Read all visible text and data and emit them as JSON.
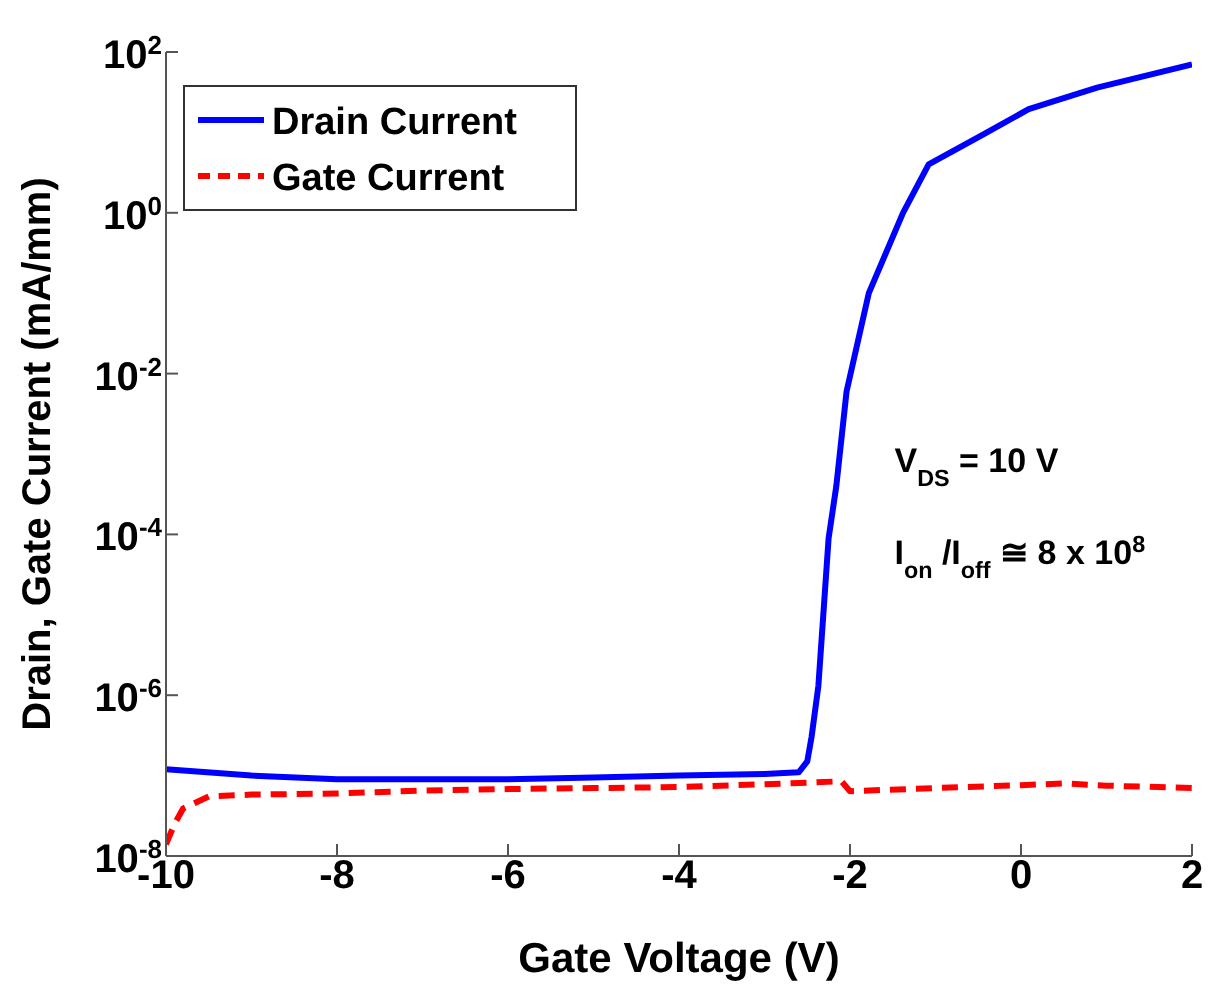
{
  "chart_data": {
    "type": "line",
    "xlabel": "Gate Voltage (V)",
    "ylabel": "Drain, Gate Current (mA/mm)",
    "log": "y",
    "grid": false,
    "legend": "top left",
    "marker": "none",
    "xlim": [
      -10,
      2
    ],
    "xticks": [
      -10,
      -8,
      -6,
      -4,
      -2,
      0,
      2
    ],
    "ylim": [
      1e-08,
      100
    ],
    "yticks": [
      {
        "value": 1e-08,
        "label": "10$^{-8}$"
      },
      {
        "value": 1e-06,
        "label": "10$^{-6}$"
      },
      {
        "value": 0.0001,
        "label": "10$^{-4}$"
      },
      {
        "value": 0.01,
        "label": "10$^{-2}$"
      },
      {
        "value": 1,
        "label": "10$^{0}$"
      },
      {
        "value": 100,
        "label": "10$^{2}$"
      }
    ],
    "annotations": [
      "V$_{DS}$ = 10 V",
      "I$_{on}$ /I$_{off}$ ≅ 8 x 10$^{8}$"
    ],
    "series": [
      {
        "name": "Drain Current",
        "color": "#0000ff",
        "line_style": "solid",
        "x": [
          -10,
          -9,
          -8,
          -7,
          -6,
          -5,
          -4,
          -3,
          -2.6,
          -2.5,
          -2.45,
          -2.37,
          -2.25,
          -2.16,
          -2.04,
          -1.78,
          -1.38,
          -1.08,
          -0.45,
          0.09,
          0.89,
          2
        ],
        "values": [
          1.2e-07,
          1e-07,
          9e-08,
          9e-08,
          9e-08,
          9.5e-08,
          1e-07,
          1.05e-07,
          1.1e-07,
          1.5e-07,
          3e-07,
          1.3e-06,
          9e-05,
          0.0004,
          0.006,
          0.1,
          1,
          4,
          9.3,
          19.5,
          36,
          70
        ]
      },
      {
        "name": "Gate Current",
        "color": "#ff0000",
        "line_style": "dashed",
        "x": [
          -10,
          -9.9,
          -9.8,
          -9.5,
          -9,
          -8,
          -7,
          -6,
          -5,
          -4,
          -3,
          -2.1,
          -2,
          -1,
          0,
          0.5,
          1,
          2
        ],
        "values": [
          1.4e-08,
          2.5e-08,
          3.9e-08,
          5.5e-08,
          5.8e-08,
          6e-08,
          6.5e-08,
          6.8e-08,
          7e-08,
          7.2e-08,
          7.8e-08,
          8.5e-08,
          6.4e-08,
          7e-08,
          7.6e-08,
          8e-08,
          7.5e-08,
          7e-08
        ]
      }
    ]
  }
}
